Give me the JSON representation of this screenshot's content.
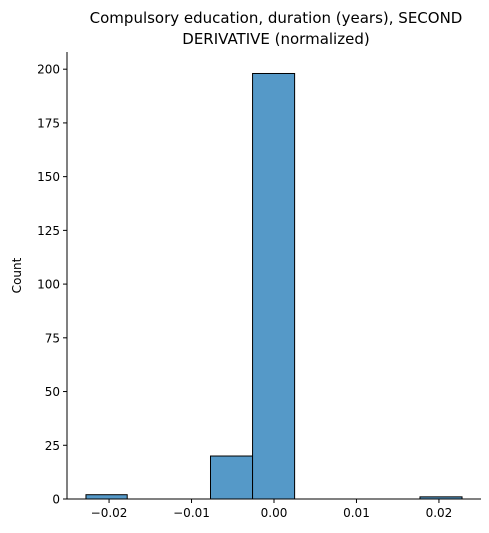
{
  "chart_data": {
    "type": "histogram",
    "title_lines": [
      "Compulsory education, duration (years), SECOND",
      "DERIVATIVE (normalized)"
    ],
    "xlabel": "",
    "ylabel": "Count",
    "bins": [
      {
        "x0": -0.0228,
        "x1": -0.0178,
        "count": 2
      },
      {
        "x0": -0.0178,
        "x1": -0.0127,
        "count": 0
      },
      {
        "x0": -0.0127,
        "x1": -0.0077,
        "count": 0
      },
      {
        "x0": -0.0077,
        "x1": -0.0026,
        "count": 20
      },
      {
        "x0": -0.0026,
        "x1": 0.0025,
        "count": 198
      },
      {
        "x0": 0.0025,
        "x1": 0.0076,
        "count": 0
      },
      {
        "x0": 0.0076,
        "x1": 0.0126,
        "count": 0
      },
      {
        "x0": 0.0126,
        "x1": 0.0177,
        "count": 0
      },
      {
        "x0": 0.0177,
        "x1": 0.0228,
        "count": 1
      }
    ],
    "xlim": [
      -0.0251,
      0.0251
    ],
    "ylim": [
      0,
      208
    ],
    "xticks": [
      -0.02,
      -0.01,
      0.0,
      0.01,
      0.02
    ],
    "xtick_labels": [
      "−0.02",
      "−0.01",
      "0.00",
      "0.01",
      "0.02"
    ],
    "yticks": [
      0,
      25,
      50,
      75,
      100,
      125,
      150,
      175,
      200
    ],
    "ytick_labels": [
      "0",
      "25",
      "50",
      "75",
      "100",
      "125",
      "150",
      "175",
      "200"
    ],
    "bar_color": "#5599c8",
    "edge_color": "#000000",
    "grid": false
  }
}
